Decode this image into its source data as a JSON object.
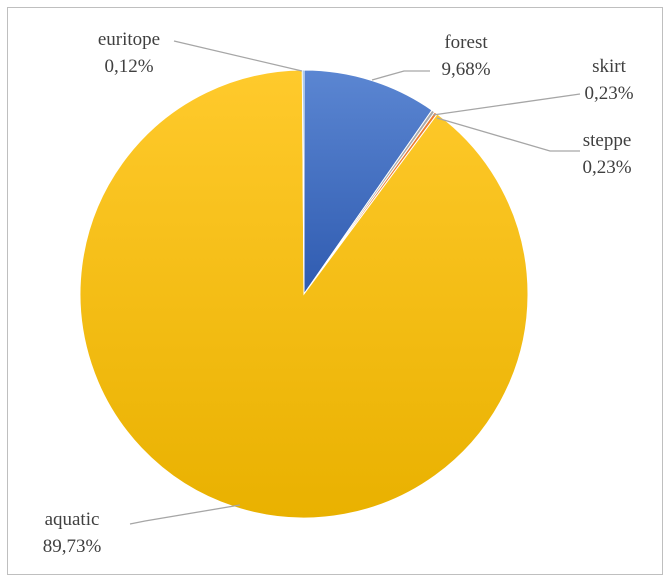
{
  "chart_data": {
    "type": "pie",
    "start_angle_deg": 0,
    "direction": "clockwise",
    "slices": [
      {
        "key": "forest",
        "label": "forest",
        "value": 9.68,
        "value_text": "9,68%",
        "color": "#4472c4"
      },
      {
        "key": "skirt",
        "label": "skirt",
        "value": 0.23,
        "value_text": "0,23%",
        "color": "#a9a9a9"
      },
      {
        "key": "steppe",
        "label": "steppe",
        "value": 0.23,
        "value_text": "0,23%",
        "color": "#ed7d31"
      },
      {
        "key": "aquatic",
        "label": "aquatic",
        "value": 89.73,
        "value_text": "89,73%",
        "color": "#ffc000"
      },
      {
        "key": "euritope",
        "label": "euritope",
        "value": 0.12,
        "value_text": "0,12%",
        "color": "#5b9bd5"
      }
    ]
  }
}
